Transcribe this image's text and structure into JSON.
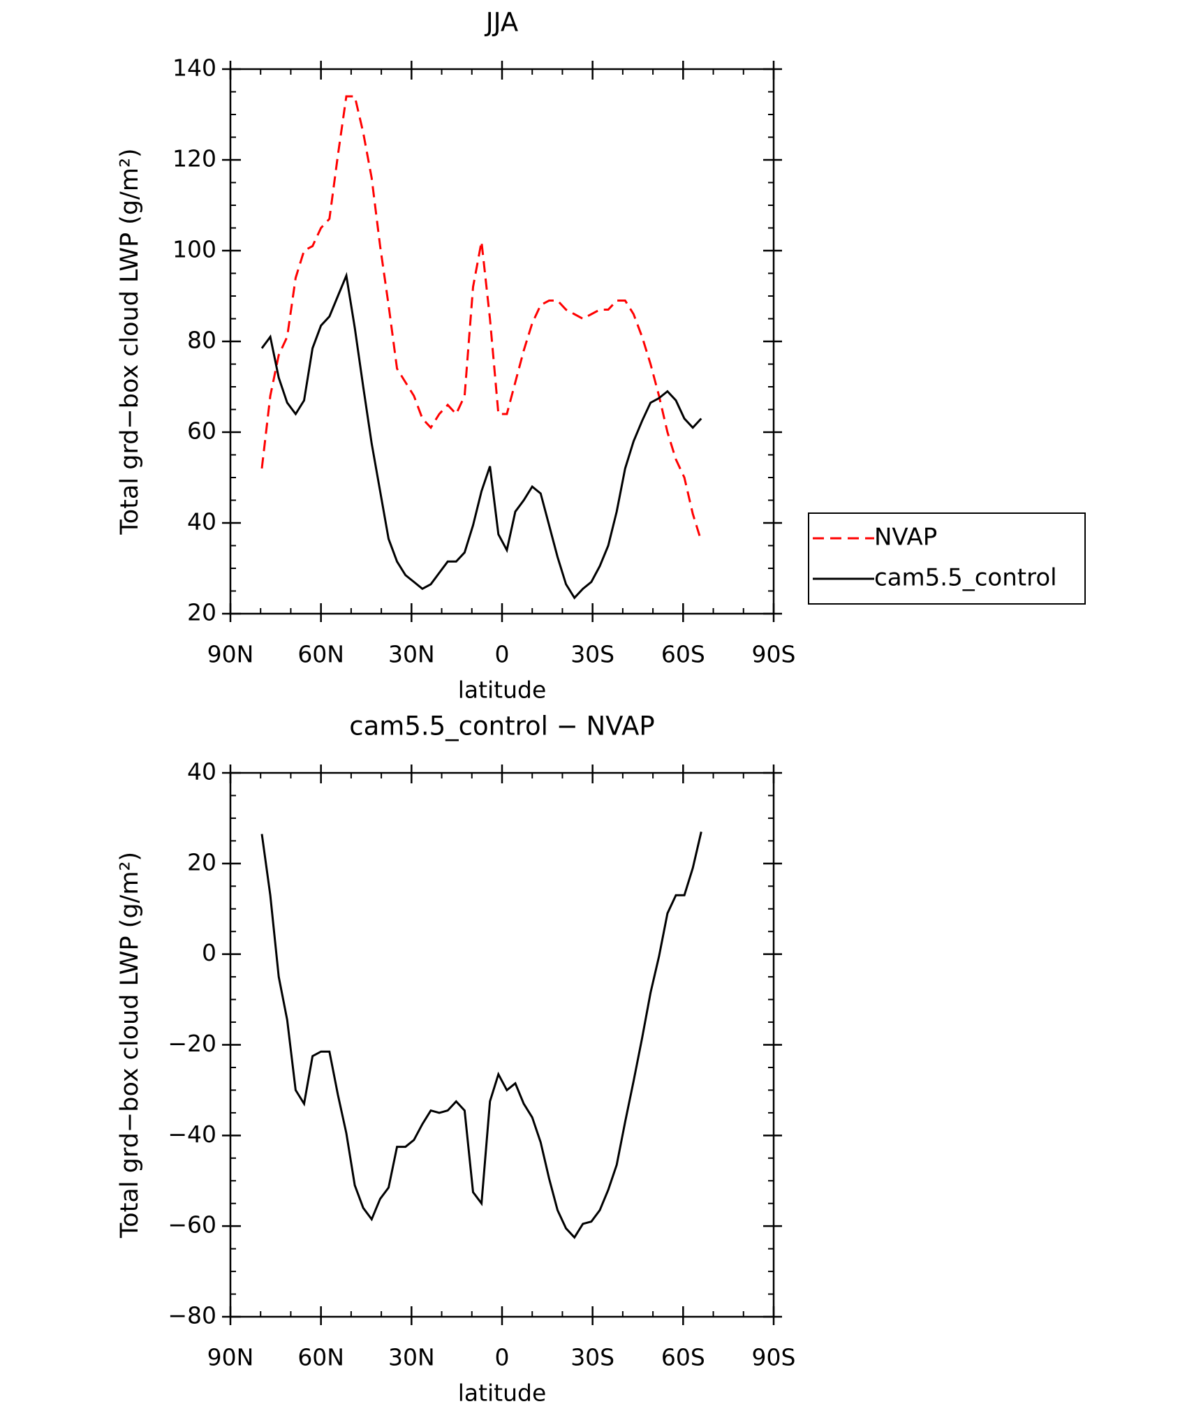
{
  "chart_data": [
    {
      "type": "line",
      "title": "JJA",
      "xlabel": "latitude",
      "ylabel": "Total grd−box cloud LWP (g/m²)",
      "x": [
        79.6,
        76.8,
        74,
        71.2,
        68.4,
        65.6,
        62.8,
        60,
        57.2,
        54.4,
        51.6,
        48.8,
        46,
        43.2,
        40.4,
        37.6,
        34.8,
        32,
        29.2,
        26.4,
        23.6,
        20.8,
        18,
        15.2,
        12.4,
        9.6,
        6.8,
        4,
        1.2,
        -1.6,
        -4.4,
        -7.2,
        -10,
        -12.8,
        -15.6,
        -18.4,
        -21.2,
        -24,
        -26.8,
        -29.6,
        -32.4,
        -35.2,
        -38,
        -40.8,
        -43.6,
        -46.4,
        -49.2,
        -52,
        -54.8,
        -57.6,
        -60.4,
        -63.2,
        -66
      ],
      "series": [
        {
          "name": "NVAP",
          "color": "#ff0000",
          "dash": true,
          "values": [
            52,
            68,
            77,
            81,
            94,
            100,
            101,
            105,
            107,
            121,
            134,
            134,
            126,
            116,
            101,
            88,
            74,
            71,
            68,
            63,
            61,
            64,
            66,
            64,
            68,
            92,
            102,
            85,
            64,
            64,
            71,
            78,
            84,
            88,
            89,
            89,
            87,
            86,
            85,
            86,
            87,
            87,
            89,
            89,
            86,
            81,
            75,
            68,
            60,
            54,
            50,
            42,
            36
          ]
        },
        {
          "name": "cam5.5_control",
          "color": "#000000",
          "dash": false,
          "values": [
            78.5,
            81,
            72,
            66.5,
            64,
            67,
            78.5,
            83.5,
            85.5,
            90,
            94.5,
            83,
            70,
            57.5,
            47,
            36.5,
            31.5,
            28.5,
            27,
            25.5,
            26.5,
            29,
            31.5,
            31.5,
            33.5,
            39.5,
            47,
            52.5,
            37.5,
            34,
            42.5,
            45,
            48,
            46.5,
            39.5,
            32.5,
            26.5,
            23.5,
            25.5,
            27,
            30.5,
            35,
            42.5,
            52,
            58,
            62.5,
            66.5,
            67.5,
            69,
            67,
            63,
            61,
            63
          ]
        }
      ],
      "xlim": [
        90,
        -90
      ],
      "xticks": [
        {
          "value": 90,
          "label": "90N"
        },
        {
          "value": 60,
          "label": "60N"
        },
        {
          "value": 30,
          "label": "30N"
        },
        0,
        {
          "value": -30,
          "label": "30S"
        },
        {
          "value": -60,
          "label": "60S"
        },
        {
          "value": -90,
          "label": "90S"
        }
      ],
      "ylim": [
        20,
        140
      ],
      "yticks": [
        20,
        40,
        60,
        80,
        100,
        120,
        140
      ],
      "legend": "right"
    },
    {
      "type": "line",
      "title": "cam5.5_control − NVAP",
      "xlabel": "latitude",
      "ylabel": "Total grd−box cloud LWP (g/m²)",
      "x": [
        79.6,
        76.8,
        74,
        71.2,
        68.4,
        65.6,
        62.8,
        60,
        57.2,
        54.4,
        51.6,
        48.8,
        46,
        43.2,
        40.4,
        37.6,
        34.8,
        32,
        29.2,
        26.4,
        23.6,
        20.8,
        18,
        15.2,
        12.4,
        9.6,
        6.8,
        4,
        1.2,
        -1.6,
        -4.4,
        -7.2,
        -10,
        -12.8,
        -15.6,
        -18.4,
        -21.2,
        -24,
        -26.8,
        -29.6,
        -32.4,
        -35.2,
        -38,
        -40.8,
        -43.6,
        -46.4,
        -49.2,
        -52,
        -54.8,
        -57.6,
        -60.4,
        -63.2,
        -66
      ],
      "series": [
        {
          "color": "#000000",
          "dash": false,
          "values": [
            26.5,
            13,
            -5,
            -14.5,
            -30,
            -33,
            -22.5,
            -21.5,
            -21.5,
            -31,
            -39.5,
            -51,
            -56,
            -58.5,
            -54,
            -51.5,
            -42.5,
            -42.5,
            -41,
            -37.5,
            -34.5,
            -35,
            -34.5,
            -32.5,
            -34.5,
            -52.5,
            -55,
            -32.5,
            -26.5,
            -30,
            -28.5,
            -33,
            -36,
            -41.5,
            -49.5,
            -56.5,
            -60.5,
            -62.5,
            -59.5,
            -59,
            -56.5,
            -52,
            -46.5,
            -37,
            -28,
            -18.5,
            -8.5,
            -0.5,
            9,
            13,
            13,
            19,
            27
          ]
        }
      ],
      "xlim": [
        90,
        -90
      ],
      "xticks": [
        {
          "value": 90,
          "label": "90N"
        },
        {
          "value": 60,
          "label": "60N"
        },
        {
          "value": 30,
          "label": "30N"
        },
        0,
        {
          "value": -30,
          "label": "30S"
        },
        {
          "value": -60,
          "label": "60S"
        },
        {
          "value": -90,
          "label": "90S"
        }
      ],
      "ylim": [
        -80,
        40
      ],
      "yticks": [
        {
          "value": -80,
          "label": "−80"
        },
        {
          "value": -60,
          "label": "−60"
        },
        {
          "value": -40,
          "label": "−40"
        },
        {
          "value": -20,
          "label": "−20"
        },
        0,
        20,
        40
      ]
    }
  ]
}
